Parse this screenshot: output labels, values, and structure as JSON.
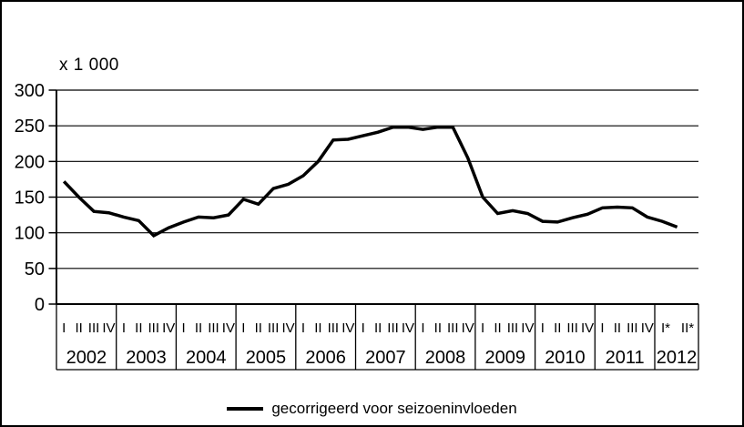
{
  "window": {
    "background": "#ffffff",
    "border_color": "#000000"
  },
  "chart_data": {
    "type": "line",
    "title": "",
    "unit_label": "x 1 000",
    "xlabel": "",
    "ylabel": "",
    "ylim": [
      0,
      300
    ],
    "yticks": [
      0,
      50,
      100,
      150,
      200,
      250,
      300
    ],
    "grid": true,
    "x_structure": {
      "years": [
        {
          "label": "2002",
          "quarters": [
            "I",
            "II",
            "III",
            "IV"
          ]
        },
        {
          "label": "2003",
          "quarters": [
            "I",
            "II",
            "III",
            "IV"
          ]
        },
        {
          "label": "2004",
          "quarters": [
            "I",
            "II",
            "III",
            "IV"
          ]
        },
        {
          "label": "2005",
          "quarters": [
            "I",
            "II",
            "III",
            "IV"
          ]
        },
        {
          "label": "2006",
          "quarters": [
            "I",
            "II",
            "III",
            "IV"
          ]
        },
        {
          "label": "2007",
          "quarters": [
            "I",
            "II",
            "III",
            "IV"
          ]
        },
        {
          "label": "2008",
          "quarters": [
            "I",
            "II",
            "III",
            "IV"
          ]
        },
        {
          "label": "2009",
          "quarters": [
            "I",
            "II",
            "III",
            "IV"
          ]
        },
        {
          "label": "2010",
          "quarters": [
            "I",
            "II",
            "III",
            "IV"
          ]
        },
        {
          "label": "2011",
          "quarters": [
            "I",
            "II",
            "III",
            "IV"
          ]
        },
        {
          "label": "2012",
          "quarters": [
            "I*",
            "II*"
          ]
        }
      ]
    },
    "series": [
      {
        "name": "gecorrigeerd voor seizoeninvloeden",
        "color": "#000000",
        "values": [
          172,
          150,
          130,
          128,
          122,
          117,
          96,
          107,
          115,
          122,
          121,
          125,
          147,
          140,
          162,
          168,
          180,
          200,
          230,
          231,
          236,
          241,
          248,
          248,
          245,
          248,
          248,
          205,
          150,
          127,
          131,
          127,
          116,
          115,
          121,
          126,
          135,
          136,
          135,
          122,
          116,
          108
        ]
      }
    ],
    "legend": {
      "position": "bottom-center",
      "entries": [
        {
          "label": "gecorrigeerd voor seizoeninvloeden",
          "color": "#000000"
        }
      ]
    }
  }
}
